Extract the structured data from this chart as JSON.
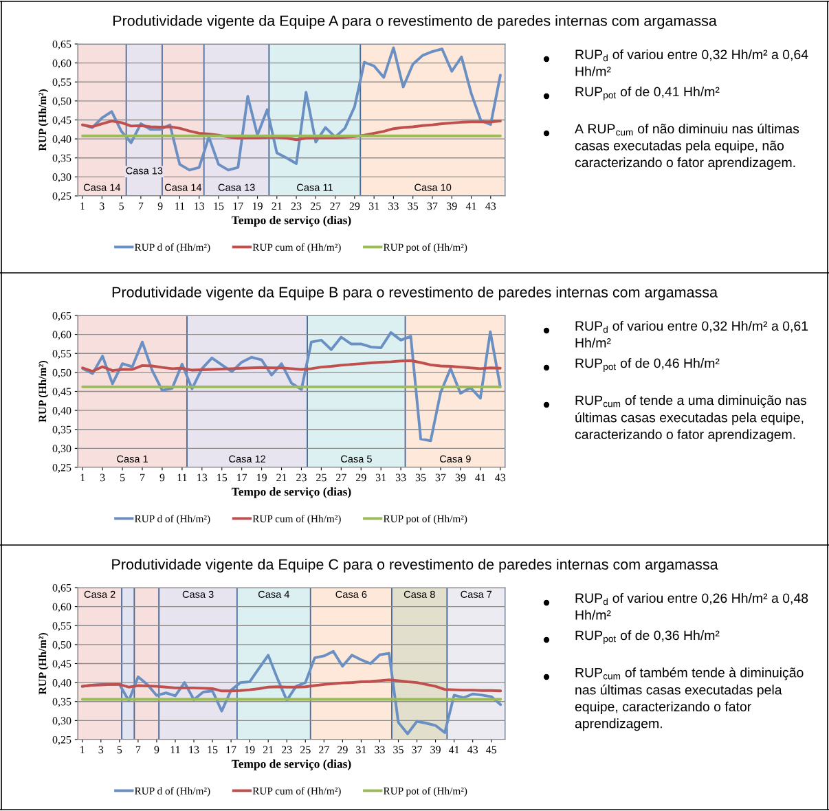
{
  "chart_data": [
    {
      "type": "line",
      "title": "Produtividade vigente da Equipe A para o revestimento de paredes internas com argamassa",
      "xlabel": "Tempo de serviço (dias)",
      "ylabel": "RUP (Hh/m²)",
      "x": [
        1,
        2,
        3,
        4,
        5,
        6,
        7,
        8,
        9,
        10,
        11,
        12,
        13,
        14,
        15,
        16,
        17,
        18,
        19,
        20,
        21,
        22,
        23,
        24,
        25,
        26,
        27,
        28,
        29,
        30,
        31,
        32,
        33,
        34,
        35,
        36,
        37,
        38,
        39,
        40,
        41,
        42,
        43,
        44
      ],
      "xlim": [
        0.5,
        44.5
      ],
      "xticks": [
        1,
        3,
        5,
        7,
        9,
        11,
        13,
        15,
        17,
        19,
        21,
        23,
        25,
        27,
        29,
        31,
        33,
        35,
        37,
        39,
        41,
        43
      ],
      "ylim": [
        0.25,
        0.65
      ],
      "yticks": [
        {
          "value": 0.25,
          "label": "0,25"
        },
        {
          "value": 0.3,
          "label": "0,30"
        },
        {
          "value": 0.35,
          "label": "0,35"
        },
        {
          "value": 0.4,
          "label": "0,40"
        },
        {
          "value": 0.45,
          "label": "0,45"
        },
        {
          "value": 0.5,
          "label": "0,50"
        },
        {
          "value": 0.55,
          "label": "0,55"
        },
        {
          "value": 0.6,
          "label": "0,60"
        },
        {
          "value": 0.65,
          "label": "0,65"
        }
      ],
      "grid": "y",
      "legend": "bottom",
      "series": [
        {
          "name": "RUP d of (Hh/m²)",
          "color": "#6a8fc3",
          "values": [
            0.437,
            0.43,
            0.455,
            0.472,
            0.42,
            0.39,
            0.44,
            0.425,
            0.425,
            0.437,
            0.333,
            0.318,
            0.325,
            0.405,
            0.333,
            0.318,
            0.325,
            0.512,
            0.41,
            0.477,
            0.363,
            0.35,
            0.335,
            0.523,
            0.392,
            0.43,
            0.405,
            0.428,
            0.485,
            0.602,
            0.592,
            0.562,
            0.64,
            0.537,
            0.597,
            0.62,
            0.63,
            0.637,
            0.578,
            0.616,
            0.52,
            0.448,
            0.438,
            0.568
          ]
        },
        {
          "name": "RUP cum of (Hh/m²)",
          "color": "#c0504d",
          "values": [
            0.437,
            0.432,
            0.44,
            0.447,
            0.443,
            0.434,
            0.435,
            0.432,
            0.431,
            0.432,
            0.428,
            0.421,
            0.415,
            0.413,
            0.41,
            0.405,
            0.402,
            0.403,
            0.403,
            0.404,
            0.404,
            0.402,
            0.398,
            0.402,
            0.403,
            0.403,
            0.403,
            0.404,
            0.406,
            0.41,
            0.415,
            0.42,
            0.427,
            0.43,
            0.432,
            0.435,
            0.437,
            0.44,
            0.442,
            0.444,
            0.445,
            0.445,
            0.445,
            0.447
          ]
        },
        {
          "name": "RUP pot of (Hh/m²)",
          "color": "#9bbb59",
          "values": [
            0.408,
            0.408,
            0.408,
            0.408,
            0.408,
            0.408,
            0.408,
            0.408,
            0.408,
            0.408,
            0.408,
            0.408,
            0.408,
            0.408,
            0.408,
            0.408,
            0.408,
            0.408,
            0.408,
            0.408,
            0.408,
            0.408,
            0.408,
            0.408,
            0.408,
            0.408,
            0.408,
            0.408,
            0.408,
            0.408,
            0.408,
            0.408,
            0.408,
            0.408,
            0.408,
            0.408,
            0.408,
            0.408,
            0.408,
            0.408,
            0.408,
            0.408,
            0.408,
            0.408
          ]
        }
      ],
      "bands": [
        {
          "axis": "x",
          "from": 0.5,
          "to": 5.5,
          "color": "#f7dfdd",
          "label": "Casa 14"
        },
        {
          "axis": "x",
          "from": 5.5,
          "to": 9.2,
          "color": "#e7e3ef",
          "label": "Casa 13"
        },
        {
          "axis": "x",
          "from": 9.2,
          "to": 13.5,
          "color": "#f7dfdd",
          "label": "Casa 14"
        },
        {
          "axis": "x",
          "from": 13.5,
          "to": 20.2,
          "color": "#e7e3ef",
          "label": "Casa 13"
        },
        {
          "axis": "x",
          "from": 20.2,
          "to": 29.6,
          "color": "#dcf0f1",
          "label": "Casa 11"
        },
        {
          "axis": "x",
          "from": 29.6,
          "to": 44.5,
          "color": "#fde8da",
          "label": "Casa 10"
        }
      ]
    },
    {
      "type": "other",
      "annotations": [
        "RUP$_{d}$ of variou entre 0,32 Hh/m² a 0,64 Hh/m²",
        "RUP$_{pot}$ of de 0,41 Hh/m²",
        "A RUP$_{cum}$ of não diminuiu nas últimas casas executadas pela equipe, não caracterizando o fator aprendizagem."
      ]
    },
    {
      "type": "line",
      "title": "Produtividade vigente da Equipe B para o revestimento de paredes internas com argamassa",
      "xlabel": "Tempo de serviço (dias)",
      "ylabel": "RUP (Hh/m²)",
      "x": [
        1,
        2,
        3,
        4,
        5,
        6,
        7,
        8,
        9,
        10,
        11,
        12,
        13,
        14,
        15,
        16,
        17,
        18,
        19,
        20,
        21,
        22,
        23,
        24,
        25,
        26,
        27,
        28,
        29,
        30,
        31,
        32,
        33,
        34,
        35,
        36,
        37,
        38,
        39,
        40,
        41,
        42,
        43
      ],
      "xlim": [
        0.5,
        43.5
      ],
      "xticks": [
        1,
        3,
        5,
        7,
        9,
        11,
        13,
        15,
        17,
        19,
        21,
        23,
        25,
        27,
        29,
        31,
        33,
        35,
        37,
        39,
        41,
        43
      ],
      "ylim": [
        0.25,
        0.65
      ],
      "yticks": [
        {
          "value": 0.25,
          "label": "0,25"
        },
        {
          "value": 0.3,
          "label": "0,30"
        },
        {
          "value": 0.35,
          "label": "0,35"
        },
        {
          "value": 0.4,
          "label": "0,40"
        },
        {
          "value": 0.45,
          "label": "0,45"
        },
        {
          "value": 0.5,
          "label": "0,50"
        },
        {
          "value": 0.55,
          "label": "0,55"
        },
        {
          "value": 0.6,
          "label": "0,60"
        },
        {
          "value": 0.65,
          "label": "0,65"
        }
      ],
      "grid": "y",
      "legend": "bottom",
      "series": [
        {
          "name": "RUP d of (Hh/m²)",
          "color": "#6a8fc3",
          "values": [
            0.51,
            0.497,
            0.543,
            0.47,
            0.523,
            0.515,
            0.58,
            0.505,
            0.453,
            0.458,
            0.522,
            0.457,
            0.51,
            0.538,
            0.52,
            0.502,
            0.527,
            0.54,
            0.533,
            0.493,
            0.523,
            0.472,
            0.455,
            0.58,
            0.585,
            0.56,
            0.593,
            0.575,
            0.575,
            0.567,
            0.565,
            0.605,
            0.585,
            0.595,
            0.325,
            0.32,
            0.447,
            0.51,
            0.445,
            0.46,
            0.432,
            0.607,
            0.462
          ]
        },
        {
          "name": "RUP cum of (Hh/m²)",
          "color": "#c0504d",
          "values": [
            0.512,
            0.503,
            0.515,
            0.505,
            0.508,
            0.508,
            0.518,
            0.517,
            0.513,
            0.51,
            0.511,
            0.506,
            0.507,
            0.508,
            0.509,
            0.51,
            0.511,
            0.512,
            0.513,
            0.512,
            0.512,
            0.51,
            0.508,
            0.51,
            0.514,
            0.516,
            0.519,
            0.521,
            0.523,
            0.525,
            0.527,
            0.528,
            0.53,
            0.531,
            0.526,
            0.52,
            0.517,
            0.516,
            0.514,
            0.512,
            0.51,
            0.512,
            0.511
          ]
        },
        {
          "name": "RUP pot of (Hh/m²)",
          "color": "#9bbb59",
          "values": [
            0.462,
            0.462,
            0.462,
            0.462,
            0.462,
            0.462,
            0.462,
            0.462,
            0.462,
            0.462,
            0.462,
            0.462,
            0.462,
            0.462,
            0.462,
            0.462,
            0.462,
            0.462,
            0.462,
            0.462,
            0.462,
            0.462,
            0.462,
            0.462,
            0.462,
            0.462,
            0.462,
            0.462,
            0.462,
            0.462,
            0.462,
            0.462,
            0.462,
            0.462,
            0.462,
            0.462,
            0.462,
            0.462,
            0.462,
            0.462,
            0.462,
            0.462,
            0.462
          ]
        }
      ],
      "bands": [
        {
          "axis": "x",
          "from": 0.5,
          "to": 11.5,
          "color": "#f7dfdd",
          "label": "Casa 1"
        },
        {
          "axis": "x",
          "from": 11.5,
          "to": 23.6,
          "color": "#e7e3ef",
          "label": "Casa 12"
        },
        {
          "axis": "x",
          "from": 23.6,
          "to": 33.45,
          "color": "#dcf0f1",
          "label": "Casa 5"
        },
        {
          "axis": "x",
          "from": 33.45,
          "to": 43.5,
          "color": "#fde8da",
          "label": "Casa 9"
        }
      ]
    },
    {
      "type": "other",
      "annotations": [
        "RUP$_{d}$ of variou entre 0,32 Hh/m² a 0,61 Hh/m²",
        "RUP$_{pot}$ of de 0,46 Hh/m²",
        "RUP$_{cum}$ of tende a uma diminuição nas últimas casas executadas pela equipe, caracterizando o fator aprendizagem."
      ]
    },
    {
      "type": "line",
      "title": "Produtividade vigente da Equipe C para o revestimento de paredes internas com argamassa",
      "xlabel": "Tempo de serviço (dias)",
      "ylabel": "RUP (Hh/m²)",
      "x": [
        1,
        2,
        3,
        4,
        5,
        6,
        7,
        8,
        9,
        10,
        11,
        12,
        13,
        14,
        15,
        16,
        17,
        18,
        19,
        20,
        21,
        22,
        23,
        24,
        25,
        26,
        27,
        28,
        29,
        30,
        31,
        32,
        33,
        34,
        35,
        36,
        37,
        38,
        39,
        40,
        41,
        42,
        43,
        44,
        45,
        46
      ],
      "xlim": [
        0.5,
        46.5
      ],
      "xticks": [
        1,
        3,
        5,
        7,
        9,
        11,
        13,
        15,
        17,
        19,
        21,
        23,
        25,
        27,
        29,
        31,
        33,
        35,
        37,
        39,
        41,
        43,
        45
      ],
      "ylim": [
        0.25,
        0.65
      ],
      "yticks": [
        {
          "value": 0.25,
          "label": "0,25"
        },
        {
          "value": 0.3,
          "label": "0,30"
        },
        {
          "value": 0.35,
          "label": "0,35"
        },
        {
          "value": 0.4,
          "label": "0,40"
        },
        {
          "value": 0.45,
          "label": "0,45"
        },
        {
          "value": 0.5,
          "label": "0,50"
        },
        {
          "value": 0.55,
          "label": "0,55"
        },
        {
          "value": 0.6,
          "label": "0,60"
        },
        {
          "value": 0.65,
          "label": "0,65"
        }
      ],
      "grid": "y",
      "legend": "bottom",
      "series": [
        {
          "name": "RUP d of (Hh/m²)",
          "color": "#6a8fc3",
          "values": [
            0.39,
            0.393,
            0.395,
            0.395,
            0.395,
            0.352,
            0.415,
            0.395,
            0.366,
            0.373,
            0.365,
            0.4,
            0.355,
            0.375,
            0.378,
            0.325,
            0.38,
            0.4,
            0.402,
            0.437,
            0.472,
            0.41,
            0.353,
            0.39,
            0.4,
            0.465,
            0.47,
            0.482,
            0.443,
            0.472,
            0.46,
            0.45,
            0.473,
            0.477,
            0.295,
            0.265,
            0.298,
            0.293,
            0.287,
            0.268,
            0.367,
            0.36,
            0.37,
            0.367,
            0.363,
            0.342
          ]
        },
        {
          "name": "RUP cum of (Hh/m²)",
          "color": "#c0504d",
          "values": [
            0.39,
            0.393,
            0.394,
            0.395,
            0.395,
            0.388,
            0.392,
            0.391,
            0.39,
            0.388,
            0.386,
            0.386,
            0.386,
            0.385,
            0.384,
            0.378,
            0.378,
            0.379,
            0.381,
            0.384,
            0.388,
            0.389,
            0.388,
            0.388,
            0.389,
            0.392,
            0.395,
            0.397,
            0.399,
            0.4,
            0.402,
            0.403,
            0.405,
            0.407,
            0.405,
            0.402,
            0.4,
            0.395,
            0.39,
            0.382,
            0.381,
            0.38,
            0.38,
            0.379,
            0.379,
            0.378
          ]
        },
        {
          "name": "RUP pot of (Hh/m²)",
          "color": "#9bbb59",
          "values": [
            0.356,
            0.356,
            0.356,
            0.356,
            0.356,
            0.356,
            0.356,
            0.356,
            0.356,
            0.356,
            0.356,
            0.356,
            0.356,
            0.356,
            0.356,
            0.356,
            0.356,
            0.356,
            0.356,
            0.356,
            0.356,
            0.356,
            0.356,
            0.356,
            0.356,
            0.356,
            0.356,
            0.356,
            0.356,
            0.356,
            0.356,
            0.356,
            0.356,
            0.356,
            0.356,
            0.356,
            0.356,
            0.356,
            0.356,
            0.356,
            0.356,
            0.356,
            0.356,
            0.356,
            0.356,
            0.356
          ]
        }
      ],
      "bands": [
        {
          "axis": "x",
          "from": 0.5,
          "to": 5.25,
          "color": "#f7dfdd",
          "label": "Casa 2"
        },
        {
          "axis": "x",
          "from": 5.25,
          "to": 6.6,
          "color": "#e2e4f2"
        },
        {
          "axis": "x",
          "from": 6.6,
          "to": 9.25,
          "color": "#f7dfdd"
        },
        {
          "axis": "x",
          "from": 9.25,
          "to": 17.65,
          "color": "#e7e3ef",
          "label": "Casa 3"
        },
        {
          "axis": "x",
          "from": 17.65,
          "to": 25.55,
          "color": "#dcf0f1",
          "label": "Casa 4"
        },
        {
          "axis": "x",
          "from": 25.55,
          "to": 34.3,
          "color": "#fde8da",
          "label": "Casa 6"
        },
        {
          "axis": "x",
          "from": 34.3,
          "to": 40.25,
          "color": "#e2dfcd",
          "label": "Casa 8"
        },
        {
          "axis": "x",
          "from": 40.25,
          "to": 46.5,
          "color": "#ecebf1",
          "label": "Casa 7"
        }
      ]
    },
    {
      "type": "other",
      "annotations": [
        "RUP$_{d}$ of variou entre 0,26 Hh/m² a 0,48 Hh/m²",
        "RUP$_{pot}$ of de 0,36 Hh/m²",
        "RUP$_{cum}$ of também tende à diminuição nas últimas casas executadas pela equipe, caracterizando o fator aprendizagem."
      ]
    }
  ]
}
